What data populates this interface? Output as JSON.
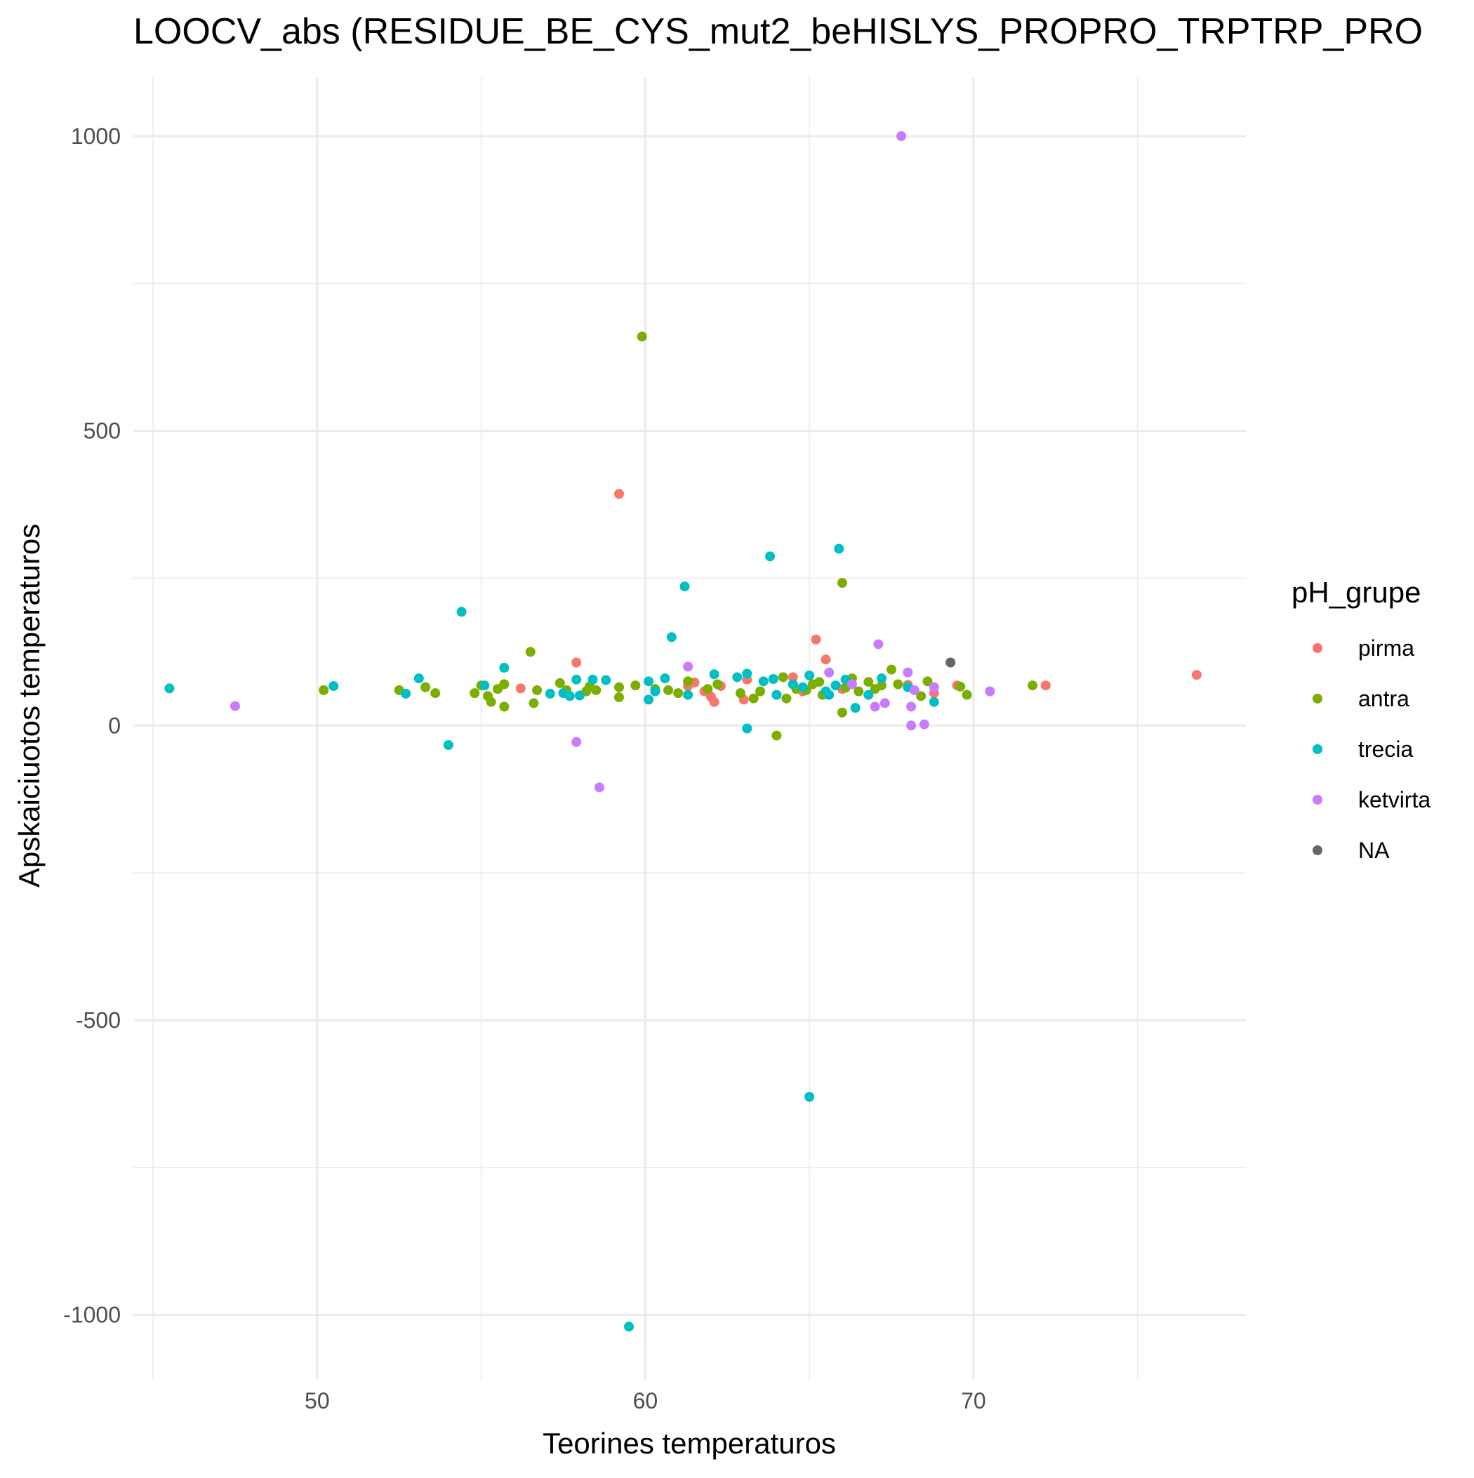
{
  "chart_data": {
    "type": "scatter",
    "title": "LOOCV_abs (RESIDUE_BE_CYS_mut2_beHISLYS_PROPRO_TRPTRP_PRO",
    "xlabel": "Teorines temperaturos",
    "ylabel": "Apskaiciuotos temperaturos",
    "xlim": [
      44.4,
      78.3
    ],
    "ylim": [
      -1110,
      1100
    ],
    "x_ticks": [
      50,
      60,
      70
    ],
    "x_tick_labels": [
      "50",
      "60",
      "70"
    ],
    "x_minor_ticks": [
      45,
      55,
      65,
      75
    ],
    "y_ticks": [
      -1000,
      -500,
      0,
      500,
      1000
    ],
    "y_tick_labels": [
      "-1000",
      "-500",
      "0",
      "500",
      "1000"
    ],
    "y_minor_ticks": [
      -750,
      -250,
      250,
      750
    ],
    "grid": true,
    "legend": {
      "title": "pH_grupe",
      "position": "right"
    },
    "series": [
      {
        "name": "pirma",
        "color": "#F8766D",
        "points": [
          [
            59.2,
            393
          ],
          [
            57.9,
            107
          ],
          [
            56.2,
            63
          ],
          [
            61.3,
            67
          ],
          [
            61.5,
            73
          ],
          [
            61.8,
            58
          ],
          [
            62.0,
            49
          ],
          [
            62.1,
            40
          ],
          [
            62.3,
            67
          ],
          [
            63.0,
            44
          ],
          [
            63.1,
            78
          ],
          [
            64.5,
            82
          ],
          [
            64.8,
            58
          ],
          [
            65.2,
            146
          ],
          [
            65.5,
            112
          ],
          [
            66.0,
            62
          ],
          [
            68.0,
            69
          ],
          [
            68.8,
            55
          ],
          [
            69.5,
            68
          ],
          [
            72.2,
            68
          ],
          [
            76.8,
            86
          ]
        ]
      },
      {
        "name": "antra",
        "color": "#7CAE00",
        "points": [
          [
            50.2,
            60
          ],
          [
            52.5,
            60
          ],
          [
            53.3,
            65
          ],
          [
            53.6,
            55
          ],
          [
            54.8,
            55
          ],
          [
            55.0,
            68
          ],
          [
            55.2,
            50
          ],
          [
            55.3,
            40
          ],
          [
            55.5,
            62
          ],
          [
            55.7,
            32
          ],
          [
            55.7,
            70
          ],
          [
            56.5,
            125
          ],
          [
            56.6,
            38
          ],
          [
            56.7,
            60
          ],
          [
            57.4,
            72
          ],
          [
            57.6,
            60
          ],
          [
            58.2,
            58
          ],
          [
            58.3,
            66
          ],
          [
            58.5,
            60
          ],
          [
            59.2,
            48
          ],
          [
            59.2,
            65
          ],
          [
            59.7,
            68
          ],
          [
            59.9,
            660
          ],
          [
            60.3,
            62
          ],
          [
            60.7,
            60
          ],
          [
            61.0,
            55
          ],
          [
            61.3,
            75
          ],
          [
            61.9,
            62
          ],
          [
            62.2,
            70
          ],
          [
            62.9,
            55
          ],
          [
            63.3,
            46
          ],
          [
            63.5,
            58
          ],
          [
            64.0,
            -17
          ],
          [
            64.2,
            82
          ],
          [
            64.3,
            46
          ],
          [
            64.6,
            62
          ],
          [
            64.9,
            60
          ],
          [
            65.1,
            70
          ],
          [
            65.3,
            74
          ],
          [
            65.4,
            52
          ],
          [
            66.0,
            242
          ],
          [
            66.0,
            22
          ],
          [
            66.1,
            64
          ],
          [
            66.3,
            80
          ],
          [
            66.5,
            58
          ],
          [
            66.8,
            74
          ],
          [
            67.0,
            62
          ],
          [
            67.2,
            68
          ],
          [
            67.5,
            95
          ],
          [
            67.7,
            70
          ],
          [
            68.4,
            50
          ],
          [
            68.6,
            75
          ],
          [
            69.6,
            66
          ],
          [
            69.8,
            52
          ],
          [
            71.8,
            68
          ]
        ]
      },
      {
        "name": "trecia",
        "color": "#00BFC4",
        "points": [
          [
            45.5,
            63
          ],
          [
            50.5,
            67
          ],
          [
            52.7,
            54
          ],
          [
            53.1,
            80
          ],
          [
            54.0,
            -33
          ],
          [
            54.4,
            193
          ],
          [
            55.1,
            68
          ],
          [
            55.7,
            98
          ],
          [
            57.1,
            54
          ],
          [
            57.5,
            55
          ],
          [
            57.7,
            50
          ],
          [
            57.9,
            78
          ],
          [
            58.0,
            51
          ],
          [
            58.4,
            78
          ],
          [
            58.8,
            77
          ],
          [
            60.1,
            44
          ],
          [
            60.1,
            75
          ],
          [
            60.3,
            58
          ],
          [
            60.6,
            80
          ],
          [
            60.8,
            150
          ],
          [
            61.2,
            236
          ],
          [
            61.3,
            52
          ],
          [
            62.1,
            87
          ],
          [
            62.8,
            82
          ],
          [
            63.1,
            88
          ],
          [
            63.1,
            -5
          ],
          [
            63.6,
            75
          ],
          [
            63.8,
            287
          ],
          [
            63.9,
            79
          ],
          [
            64.0,
            52
          ],
          [
            64.5,
            70
          ],
          [
            64.8,
            65
          ],
          [
            65.0,
            -630
          ],
          [
            65.0,
            85
          ],
          [
            65.5,
            58
          ],
          [
            65.6,
            52
          ],
          [
            65.8,
            68
          ],
          [
            65.9,
            300
          ],
          [
            66.1,
            78
          ],
          [
            66.4,
            30
          ],
          [
            66.8,
            52
          ],
          [
            67.2,
            80
          ],
          [
            68.0,
            65
          ],
          [
            68.8,
            40
          ],
          [
            59.5,
            -1020
          ]
        ]
      },
      {
        "name": "ketvirta",
        "color": "#C77CFF",
        "points": [
          [
            47.5,
            33
          ],
          [
            57.9,
            -28
          ],
          [
            58.6,
            -105
          ],
          [
            61.3,
            100
          ],
          [
            65.6,
            90
          ],
          [
            66.3,
            70
          ],
          [
            67.0,
            32
          ],
          [
            67.1,
            138
          ],
          [
            67.3,
            38
          ],
          [
            67.8,
            1000
          ],
          [
            68.0,
            90
          ],
          [
            68.1,
            32
          ],
          [
            68.1,
            0
          ],
          [
            68.2,
            60
          ],
          [
            68.5,
            2
          ],
          [
            68.8,
            65
          ],
          [
            70.5,
            58
          ]
        ]
      },
      {
        "name": "NA",
        "color": "#666666",
        "points": [
          [
            69.3,
            107
          ]
        ]
      }
    ]
  }
}
